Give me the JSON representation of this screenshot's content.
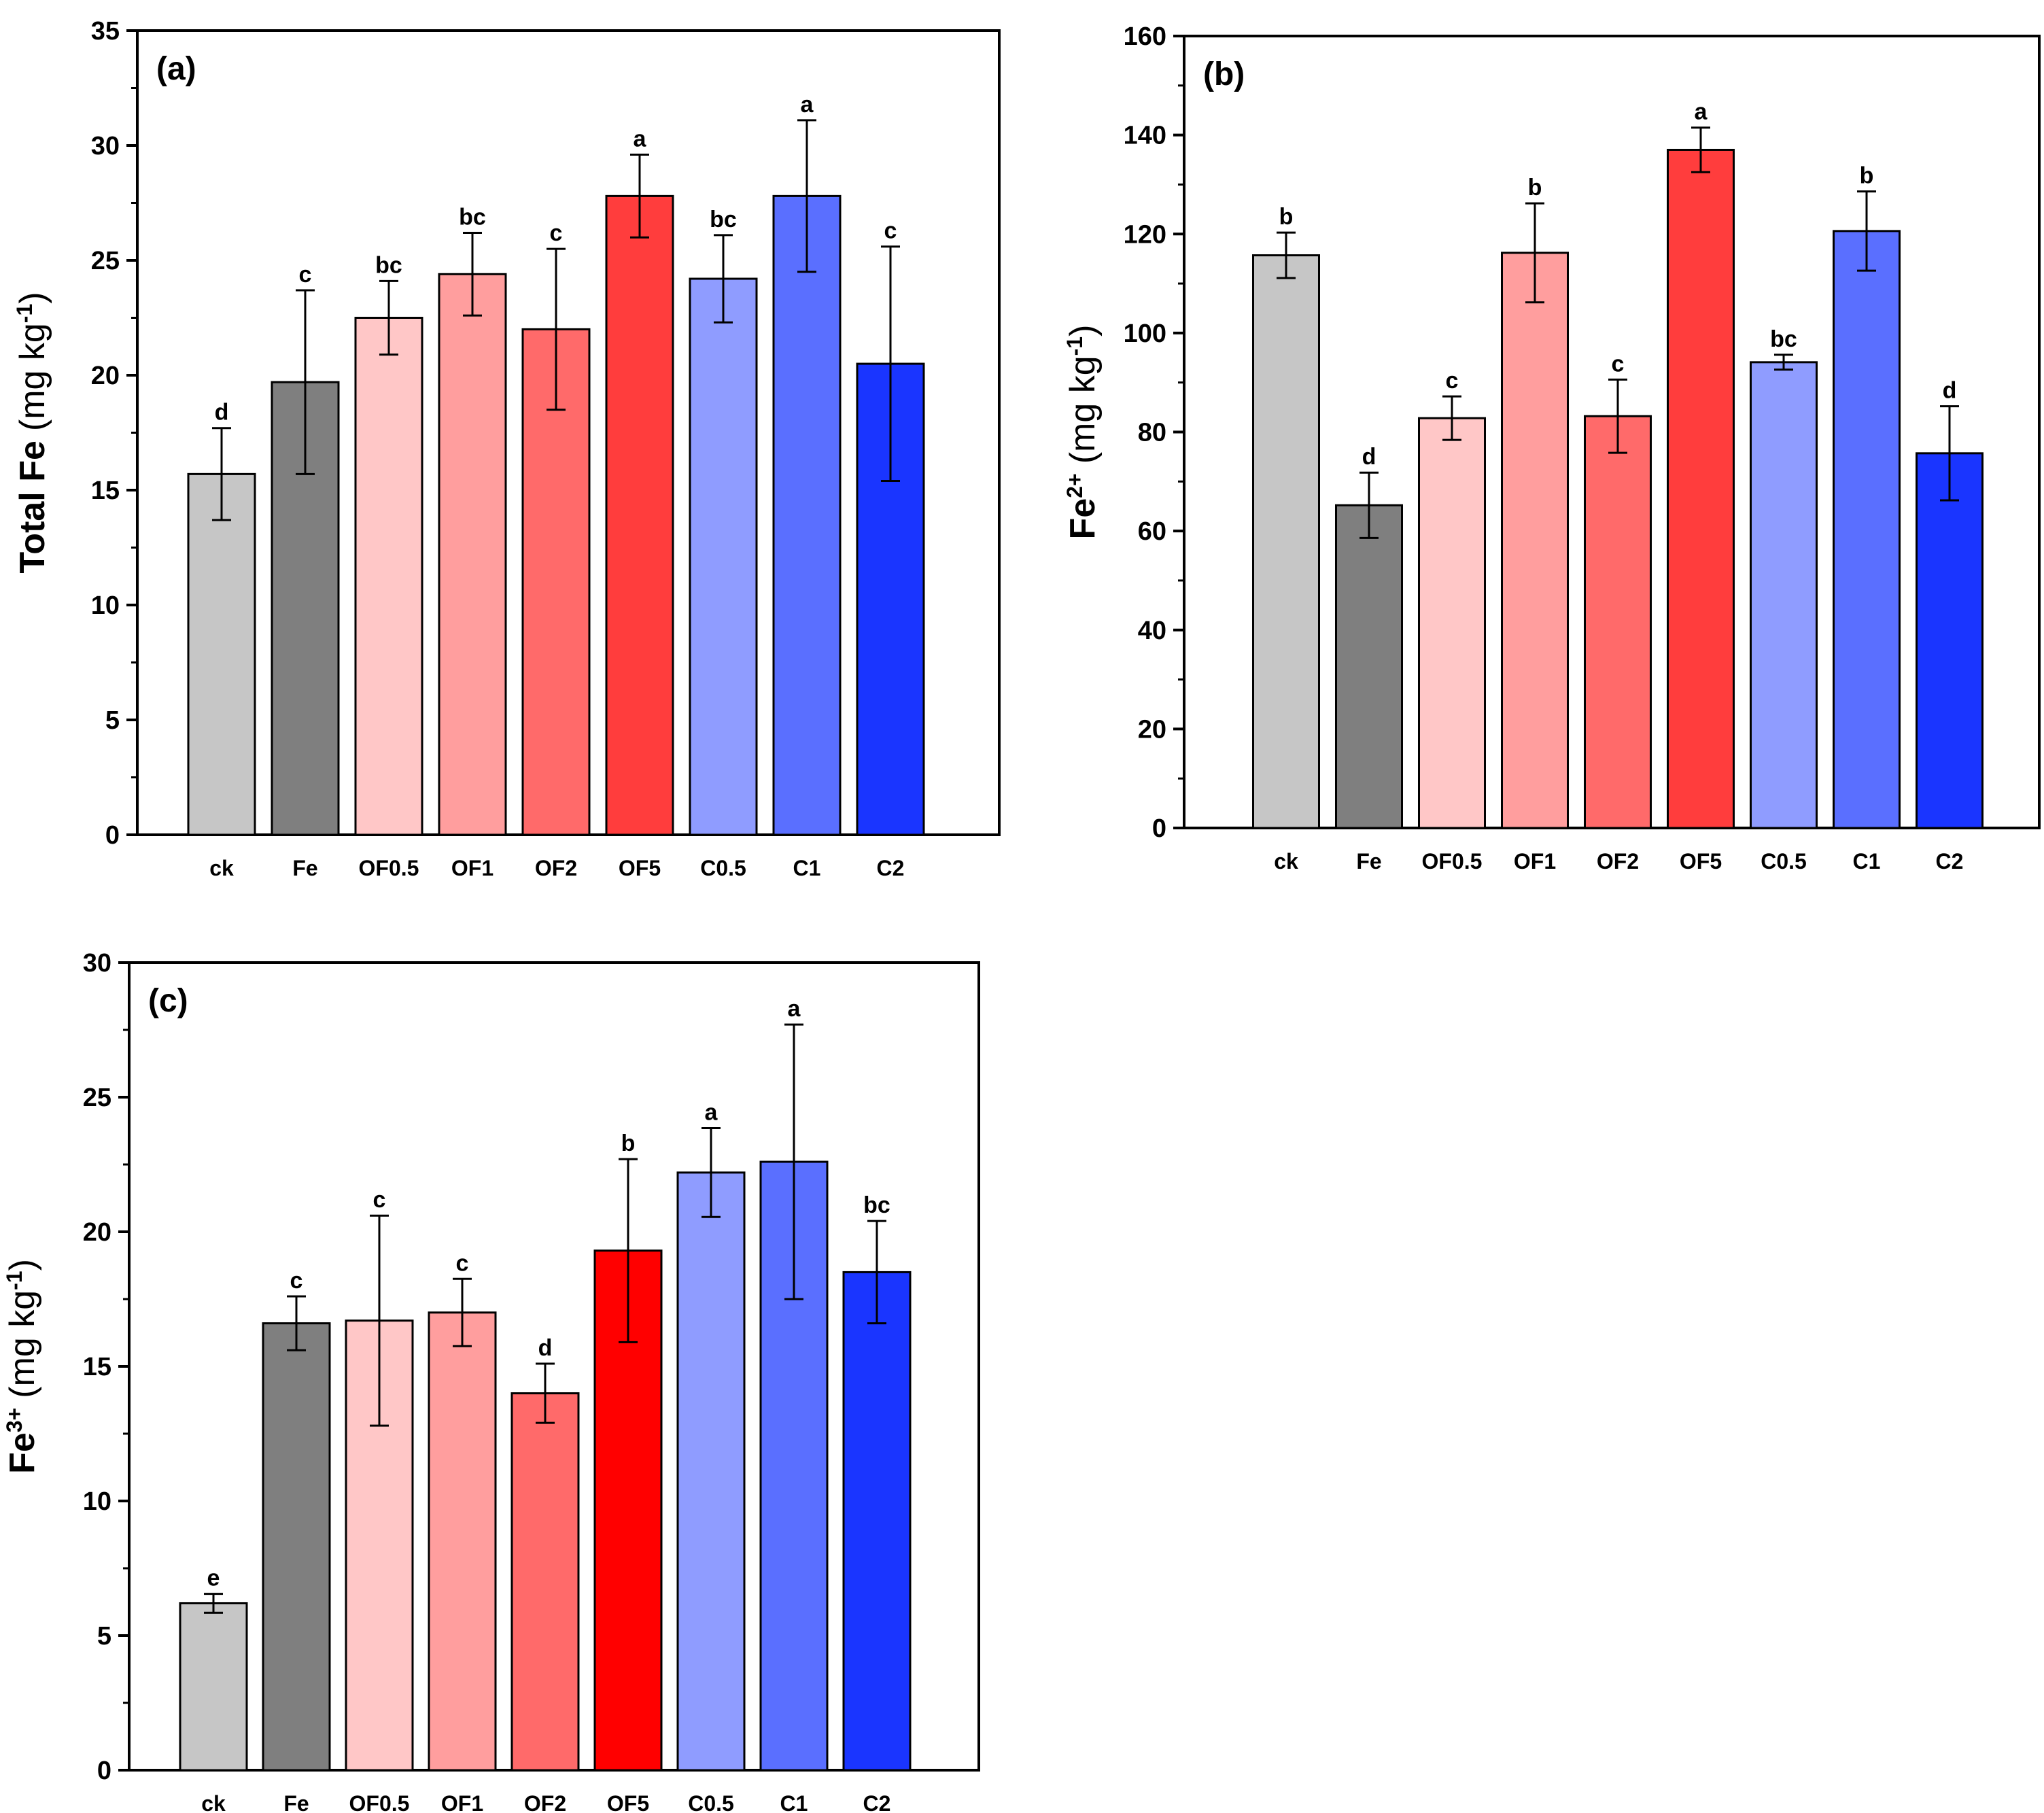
{
  "chart_data": [
    {
      "type": "bar",
      "panel": "(a)",
      "ylabel_main": "Total Fe",
      "ylabel_unit_open": "(mg kg",
      "ylabel_unit_sup": "-1",
      "ylabel_unit_close": ")",
      "ylim": [
        0,
        35
      ],
      "yticks": [
        0,
        5,
        10,
        15,
        20,
        25,
        30,
        35
      ],
      "categories": [
        "ck",
        "Fe",
        "OF0.5",
        "OF1",
        "OF2",
        "OF5",
        "C0.5",
        "C1",
        "C2"
      ],
      "values": [
        15.7,
        19.7,
        22.5,
        24.4,
        22.0,
        27.8,
        24.2,
        27.8,
        20.5
      ],
      "errors": [
        2.0,
        4.0,
        1.6,
        1.8,
        3.5,
        1.8,
        1.9,
        3.3,
        5.1
      ],
      "letters": [
        "d",
        "c",
        "bc",
        "bc",
        "c",
        "a",
        "bc",
        "a",
        "c"
      ],
      "colors": [
        "#c6c6c6",
        "#7f7f7f",
        "#ffc7c7",
        "#ff9e9e",
        "#ff6a6a",
        "#ff3d3d",
        "#8f9cff",
        "#5a6fff",
        "#1a35ff"
      ]
    },
    {
      "type": "bar",
      "panel": "(b)",
      "ylabel_main": "Fe",
      "ylabel_sup": "2+",
      "ylabel_unit_open": "(mg kg",
      "ylabel_unit_sup": "-1",
      "ylabel_unit_close": ")",
      "ylim": [
        0,
        160
      ],
      "yticks": [
        0,
        20,
        40,
        60,
        80,
        100,
        120,
        140,
        160
      ],
      "categories": [
        "ck",
        "Fe",
        "OF0.5",
        "OF1",
        "OF2",
        "OF5",
        "C0.5",
        "C1",
        "C2"
      ],
      "values": [
        115.7,
        65.2,
        82.8,
        116.2,
        83.2,
        137.0,
        94.1,
        120.6,
        75.7
      ],
      "errors": [
        4.6,
        6.6,
        4.4,
        10.0,
        7.4,
        4.5,
        1.5,
        8.0,
        9.5
      ],
      "letters": [
        "b",
        "d",
        "c",
        "b",
        "c",
        "a",
        "bc",
        "b",
        "d"
      ],
      "colors": [
        "#c6c6c6",
        "#7f7f7f",
        "#ffc7c7",
        "#ff9e9e",
        "#ff6a6a",
        "#ff3d3d",
        "#8f9cff",
        "#5a6fff",
        "#1a35ff"
      ]
    },
    {
      "type": "bar",
      "panel": "(c)",
      "ylabel_main": "Fe",
      "ylabel_sup": "3+",
      "ylabel_unit_open": "(mg kg",
      "ylabel_unit_sup": "-1",
      "ylabel_unit_close": ")",
      "ylim": [
        0,
        30
      ],
      "yticks": [
        0,
        5,
        10,
        15,
        20,
        25,
        30
      ],
      "categories": [
        "ck",
        "Fe",
        "OF0.5",
        "OF1",
        "OF2",
        "OF5",
        "C0.5",
        "C1",
        "C2"
      ],
      "values": [
        6.2,
        16.6,
        16.7,
        17.0,
        14.0,
        19.3,
        22.2,
        22.6,
        18.5
      ],
      "errors": [
        0.35,
        1.0,
        3.9,
        1.25,
        1.1,
        3.4,
        1.65,
        5.1,
        1.9
      ],
      "letters": [
        "e",
        "c",
        "c",
        "c",
        "d",
        "b",
        "a",
        "a",
        "bc"
      ],
      "colors": [
        "#c6c6c6",
        "#7f7f7f",
        "#ffc7c7",
        "#ff9e9e",
        "#ff6a6a",
        "#ff0000",
        "#8f9cff",
        "#5a6fff",
        "#1a35ff"
      ]
    }
  ]
}
